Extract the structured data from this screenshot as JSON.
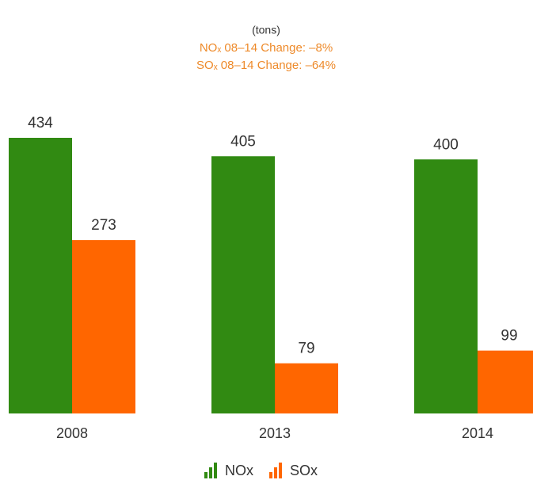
{
  "chart_data": {
    "type": "bar",
    "subtitle": "(tons)",
    "annotations": [
      "NOₓ 08–14 Change: –8%",
      "SOₓ 08–14 Change: –64%"
    ],
    "annotation_color": "#ee8a2a",
    "categories": [
      "2008",
      "2013",
      "2014"
    ],
    "series": [
      {
        "name": "NOx",
        "color": "#318a12",
        "values": [
          434,
          405,
          400
        ]
      },
      {
        "name": "SOx",
        "color": "#ff6600",
        "values": [
          273,
          79,
          99
        ]
      }
    ],
    "legend": "bottom"
  }
}
